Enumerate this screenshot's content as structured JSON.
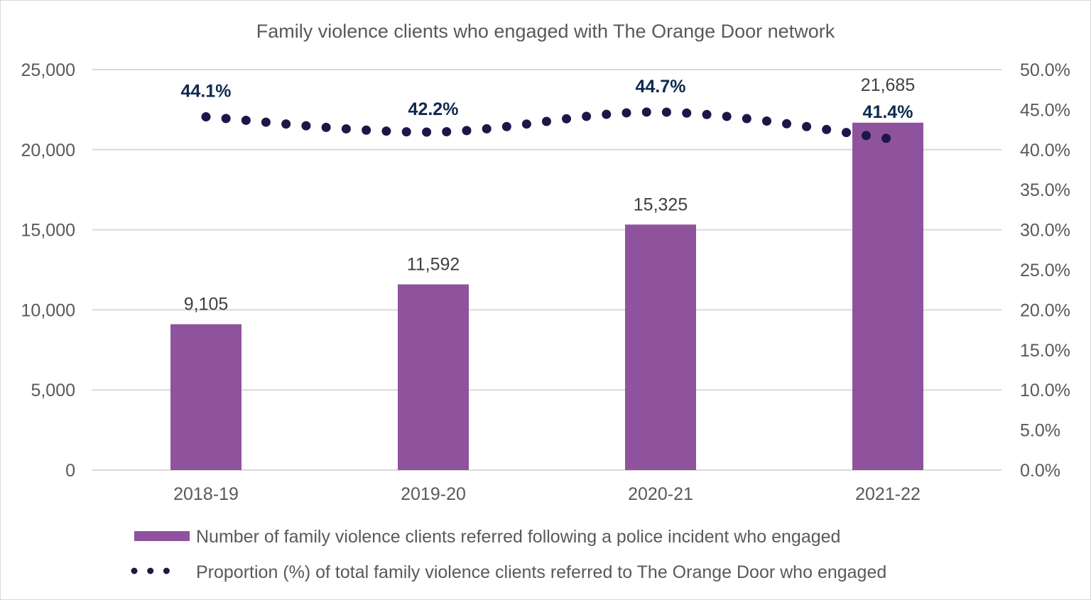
{
  "chart_data": {
    "type": "bar+line",
    "title": "Family violence clients who engaged with The Orange Door network",
    "categories": [
      "2018-19",
      "2019-20",
      "2020-21",
      "2021-22"
    ],
    "series": [
      {
        "name": "Number of family violence clients referred following a police incident who engaged",
        "type": "bar",
        "axis": "left",
        "values": [
          9105,
          11592,
          15325,
          21685
        ],
        "labels": [
          "9,105",
          "11,592",
          "15,325",
          "21,685"
        ],
        "color": "#8F539D"
      },
      {
        "name": "Proportion (%) of total family violence clients referred to The Orange Door who engaged",
        "type": "line",
        "style": "dotted",
        "axis": "right",
        "values": [
          44.1,
          42.2,
          44.7,
          41.4
        ],
        "labels": [
          "44.1%",
          "42.2%",
          "44.7%",
          "41.4%"
        ],
        "color": "#1B1747",
        "label_color": "#0F2A4F"
      }
    ],
    "left_axis": {
      "ylim": [
        0,
        25000
      ],
      "ticks": [
        "0",
        "5,000",
        "10,000",
        "15,000",
        "20,000",
        "25,000"
      ],
      "tick_values": [
        0,
        5000,
        10000,
        15000,
        20000,
        25000
      ]
    },
    "right_axis": {
      "ylim": [
        0,
        50
      ],
      "ticks": [
        "0.0%",
        "5.0%",
        "10.0%",
        "15.0%",
        "20.0%",
        "25.0%",
        "30.0%",
        "35.0%",
        "40.0%",
        "45.0%",
        "50.0%"
      ],
      "tick_values": [
        0,
        5,
        10,
        15,
        20,
        25,
        30,
        35,
        40,
        45,
        50
      ]
    },
    "grid": true,
    "legend_position": "bottom"
  }
}
